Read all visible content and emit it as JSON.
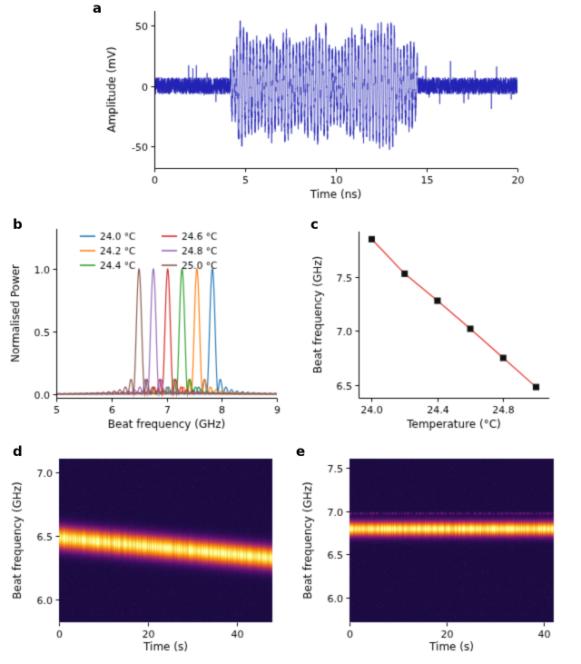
{
  "figure": {
    "background": "#ffffff",
    "panel_labels": {
      "a": "a",
      "b": "b",
      "c": "c",
      "d": "d",
      "e": "e"
    }
  },
  "chart_data": [
    {
      "id": "a",
      "type": "line",
      "description": "Time-domain RF burst waveform with noise floor",
      "xlabel": "Time (ns)",
      "ylabel": "Amplitude (mV)",
      "xlim": [
        0,
        20
      ],
      "ylim": [
        -68,
        62
      ],
      "xticks": [
        0,
        5,
        10,
        15,
        20
      ],
      "xtick_labels": [
        "0",
        "5",
        "10",
        "15",
        "20"
      ],
      "yticks": [
        -50,
        0,
        50
      ],
      "ytick_labels": [
        "-50",
        "0",
        "50"
      ],
      "line_color": "#2323b4",
      "signal": {
        "noise_amplitude_mv": 7,
        "burst_start_ns": 4.2,
        "burst_end_ns": 14.5,
        "burst_amplitude_mv": 50,
        "carrier_period_ns": 0.18
      }
    },
    {
      "id": "b",
      "type": "line",
      "description": "Normalised beat-note spectra at different temperatures",
      "xlabel": "Beat frequency (GHz)",
      "ylabel": "Normalised Power",
      "xlim": [
        5,
        9
      ],
      "ylim": [
        -0.03,
        1.32
      ],
      "xticks": [
        5,
        6,
        7,
        8,
        9
      ],
      "xtick_labels": [
        "5",
        "6",
        "7",
        "8",
        "9"
      ],
      "yticks": [
        0.0,
        0.5,
        1.0
      ],
      "ytick_labels": [
        "0.0",
        "0.5",
        "1.0"
      ],
      "peak_width_ghz": 0.1,
      "series": [
        {
          "name": "24.0 °C",
          "color": "#1f77b4",
          "peak_ghz": 7.83,
          "peak_power": 1.0
        },
        {
          "name": "24.2 °C",
          "color": "#ff7f0e",
          "peak_ghz": 7.55,
          "peak_power": 1.0
        },
        {
          "name": "24.4 °C",
          "color": "#2ca02c",
          "peak_ghz": 7.28,
          "peak_power": 1.0
        },
        {
          "name": "24.6 °C",
          "color": "#d62728",
          "peak_ghz": 7.02,
          "peak_power": 1.0
        },
        {
          "name": "24.8 °C",
          "color": "#9467bd",
          "peak_ghz": 6.76,
          "peak_power": 1.0
        },
        {
          "name": "25.0 °C",
          "color": "#8c564b",
          "peak_ghz": 6.5,
          "peak_power": 1.0
        }
      ],
      "legend": {
        "columns": 2,
        "position": "upper left"
      }
    },
    {
      "id": "c",
      "type": "scatter",
      "description": "Beat frequency versus temperature with linear fit",
      "xlabel": "Temperature (°C)",
      "ylabel": "Beat frequency (GHz)",
      "x": [
        24.0,
        24.2,
        24.4,
        24.6,
        24.8,
        25.0
      ],
      "y": [
        7.85,
        7.53,
        7.28,
        7.02,
        6.75,
        6.48
      ],
      "marker": "black-square",
      "marker_color": "#111111",
      "fit_line_color": "#e8352a",
      "xlim": [
        23.92,
        25.08
      ],
      "ylim": [
        6.38,
        7.92
      ],
      "xticks": [
        24.0,
        24.4,
        24.8
      ],
      "xtick_labels": [
        "24.0",
        "24.4",
        "24.8"
      ],
      "yticks": [
        6.5,
        7.0,
        7.5
      ],
      "ytick_labels": [
        "6.5",
        "7.0",
        "7.5"
      ]
    },
    {
      "id": "d",
      "type": "heatmap",
      "description": "Spectrogram: beat note drifting slowly downward in frequency",
      "xlabel": "Time (s)",
      "ylabel": "Beat frequency (GHz)",
      "xlim": [
        0,
        48
      ],
      "ylim": [
        5.82,
        7.11
      ],
      "xticks": [
        0,
        20,
        40
      ],
      "xtick_labels": [
        "0",
        "20",
        "40"
      ],
      "yticks": [
        6.0,
        6.5,
        7.0
      ],
      "ytick_labels": [
        "6.0",
        "6.5",
        "7.0"
      ],
      "colormap": "inferno",
      "band": {
        "start_ghz": 6.49,
        "end_ghz": 6.33,
        "width_ghz": 0.09
      }
    },
    {
      "id": "e",
      "type": "heatmap",
      "description": "Spectrogram: stabilised beat note at constant frequency",
      "xlabel": "Time (s)",
      "ylabel": "Beat frequency (GHz)",
      "xlim": [
        0,
        42
      ],
      "ylim": [
        5.71,
        7.61
      ],
      "xticks": [
        0,
        20,
        40
      ],
      "xtick_labels": [
        "0",
        "20",
        "40"
      ],
      "yticks": [
        6.0,
        6.5,
        7.0,
        7.5
      ],
      "ytick_labels": [
        "6.0",
        "6.5",
        "7.0",
        "7.5"
      ],
      "colormap": "inferno",
      "band": {
        "start_ghz": 6.8,
        "end_ghz": 6.8,
        "width_ghz": 0.085
      },
      "faint_line_ghz": 6.98
    }
  ]
}
